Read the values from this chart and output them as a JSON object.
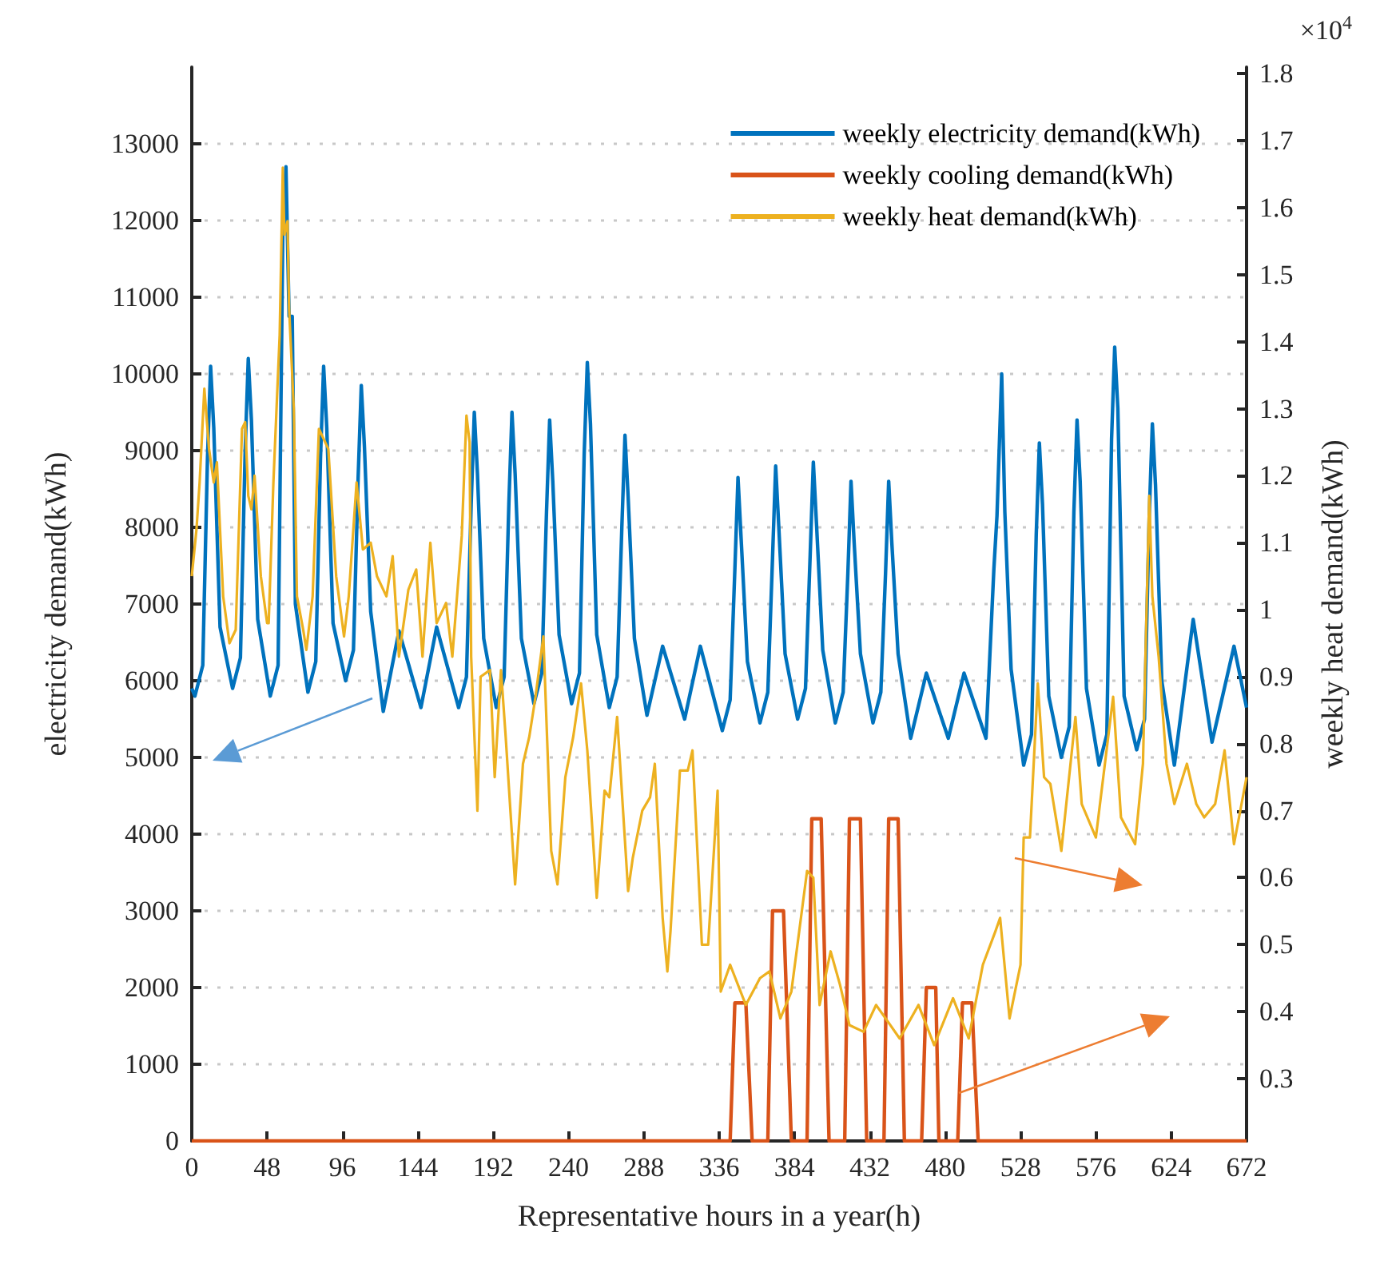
{
  "chart_data": {
    "type": "line",
    "xlabel": "Representative hours in a year(h)",
    "ylabel": "electricity demand(kWh)",
    "y2label": "weekly heat demand(kWh)",
    "annotations": [
      "×10$^{4}$"
    ],
    "xlim": [
      0,
      672
    ],
    "xticks": [
      0,
      48,
      96,
      144,
      192,
      240,
      288,
      336,
      384,
      432,
      480,
      528,
      576,
      624,
      672
    ],
    "ylim": [
      0,
      14000
    ],
    "yticks": [
      0,
      1000,
      2000,
      3000,
      4000,
      5000,
      6000,
      7000,
      8000,
      9000,
      10000,
      11000,
      12000,
      13000
    ],
    "y2lim": [
      0.207,
      1.81
    ],
    "y2ticks": [
      0.3,
      0.4,
      0.5,
      0.6,
      0.7,
      0.8,
      0.9,
      1,
      1.1,
      1.2,
      1.3,
      1.4,
      1.5,
      1.6,
      1.7,
      1.8
    ],
    "grid": "y",
    "legend": "top right",
    "series": [
      {
        "name": "weekly electricity demand(kWh)",
        "color": "#0072bd",
        "x": [
          0,
          2,
          7,
          10,
          12,
          14,
          18,
          26,
          31,
          34,
          36,
          38,
          42,
          50,
          55,
          58,
          60,
          62,
          64,
          66,
          74,
          79,
          82,
          84,
          86,
          90,
          98,
          103,
          106,
          108,
          110,
          114,
          122,
          132,
          146,
          156,
          170,
          175,
          178,
          180,
          182,
          186,
          194,
          199,
          202,
          204,
          206,
          210,
          218,
          223,
          226,
          228,
          230,
          234,
          242,
          247,
          250,
          252,
          254,
          258,
          266,
          271,
          274,
          276,
          278,
          282,
          290,
          300,
          314,
          324,
          338,
          343,
          346,
          348,
          350,
          354,
          362,
          367,
          370,
          372,
          374,
          378,
          386,
          391,
          394,
          396,
          398,
          402,
          410,
          415,
          418,
          420,
          422,
          426,
          434,
          439,
          442,
          444,
          446,
          450,
          458,
          468,
          482,
          492,
          506,
          511,
          513,
          516,
          518,
          522,
          530,
          535,
          538,
          540,
          542,
          546,
          554,
          559,
          562,
          564,
          566,
          570,
          578,
          583,
          586,
          588,
          590,
          594,
          602,
          607,
          610,
          612,
          614,
          618,
          626,
          638,
          650,
          664,
          672
        ],
        "values": [
          5900,
          5800,
          6200,
          8900,
          10100,
          9300,
          6700,
          5900,
          6300,
          9000,
          10200,
          9400,
          6800,
          5800,
          6200,
          11850,
          12700,
          10750,
          10750,
          7000,
          5850,
          6250,
          8900,
          10100,
          9300,
          6750,
          6000,
          6400,
          8650,
          9850,
          9050,
          6900,
          5600,
          6650,
          5650,
          6700,
          5650,
          6050,
          8300,
          9500,
          8700,
          6550,
          5650,
          6050,
          8300,
          9500,
          8700,
          6550,
          5700,
          6100,
          8200,
          9400,
          8600,
          6600,
          5700,
          6100,
          8950,
          10150,
          9350,
          6600,
          5650,
          6050,
          8000,
          9200,
          8400,
          6550,
          5550,
          6450,
          5500,
          6450,
          5350,
          5750,
          7450,
          8650,
          7850,
          6250,
          5450,
          5850,
          7600,
          8800,
          8000,
          6350,
          5500,
          5900,
          7650,
          8850,
          8050,
          6400,
          5450,
          5850,
          7400,
          8600,
          7800,
          6350,
          5450,
          5850,
          7400,
          8600,
          7800,
          6350,
          5250,
          6100,
          5250,
          6100,
          5250,
          7450,
          8150,
          10000,
          8200,
          6150,
          4900,
          5300,
          7900,
          9100,
          8300,
          5800,
          5000,
          5400,
          8200,
          9400,
          8600,
          5900,
          4900,
          5300,
          9150,
          10350,
          9550,
          5800,
          5100,
          5500,
          8150,
          9350,
          8550,
          6000,
          4900,
          6800,
          5200,
          6450,
          5650
        ]
      },
      {
        "name": "weekly cooling demand(kWh)",
        "color": "#d95319",
        "x": [
          0,
          343,
          346,
          353,
          357,
          367,
          370,
          377,
          382,
          392,
          395,
          401,
          406,
          416,
          419,
          426,
          430,
          441,
          444,
          450,
          454,
          465,
          468,
          474,
          476,
          488,
          491,
          497,
          501,
          672
        ],
        "values": [
          0,
          0,
          1800,
          1800,
          0,
          0,
          3000,
          3000,
          0,
          0,
          4200,
          4200,
          0,
          0,
          4200,
          4200,
          0,
          0,
          4200,
          4200,
          0,
          0,
          2000,
          2000,
          0,
          0,
          1800,
          1800,
          0,
          0
        ]
      },
      {
        "name": "weekly heat demand(kWh)",
        "color": "#edb120",
        "axis": "y2",
        "x": [
          0,
          3,
          5,
          8,
          11,
          14,
          16,
          20,
          24,
          28,
          32,
          34,
          36,
          38,
          40,
          44,
          48,
          49,
          52,
          56,
          58,
          59,
          61,
          62,
          65,
          67,
          71,
          73,
          77,
          81,
          83,
          87,
          92,
          97,
          100,
          105,
          109,
          114,
          118,
          124,
          128,
          132,
          138,
          143,
          147,
          152,
          156,
          162,
          166,
          172,
          175,
          177,
          178,
          182,
          184,
          190,
          193,
          197,
          200,
          206,
          211,
          215,
          219,
          224,
          229,
          233,
          238,
          243,
          248,
          252,
          258,
          263,
          266,
          271,
          278,
          281,
          287,
          292,
          295,
          300,
          303,
          305,
          311,
          316,
          319,
          325,
          329,
          335,
          337,
          343,
          353,
          362,
          368,
          375,
          382,
          387,
          392,
          396,
          400,
          407,
          413,
          419,
          428,
          436,
          445,
          451,
          463,
          473,
          485,
          495,
          504,
          512,
          515,
          521,
          528,
          530,
          534,
          539,
          543,
          547,
          554,
          563,
          567,
          576,
          587,
          592,
          601,
          606,
          610,
          612,
          616,
          621,
          626,
          634,
          640,
          645,
          652,
          658,
          664,
          672
        ],
        "values": [
          1.05,
          1.12,
          1.19,
          1.33,
          1.24,
          1.19,
          1.22,
          1.02,
          0.95,
          0.97,
          1.27,
          1.28,
          1.17,
          1.15,
          1.2,
          1.05,
          0.98,
          0.98,
          1.19,
          1.41,
          1.66,
          1.56,
          1.58,
          1.45,
          1.3,
          1.02,
          0.97,
          0.94,
          1.02,
          1.27,
          1.26,
          1.24,
          1.05,
          0.96,
          1.02,
          1.19,
          1.09,
          1.1,
          1.05,
          1.02,
          1.08,
          0.93,
          1.03,
          1.06,
          0.93,
          1.1,
          0.98,
          1.01,
          0.93,
          1.11,
          1.29,
          1.25,
          0.93,
          0.7,
          0.9,
          0.91,
          0.75,
          0.91,
          0.81,
          0.59,
          0.77,
          0.81,
          0.87,
          0.96,
          0.64,
          0.59,
          0.75,
          0.81,
          0.89,
          0.79,
          0.57,
          0.73,
          0.72,
          0.84,
          0.58,
          0.63,
          0.7,
          0.72,
          0.77,
          0.54,
          0.46,
          0.52,
          0.76,
          0.76,
          0.79,
          0.5,
          0.5,
          0.73,
          0.43,
          0.47,
          0.41,
          0.45,
          0.46,
          0.39,
          0.43,
          0.52,
          0.61,
          0.6,
          0.41,
          0.49,
          0.44,
          0.38,
          0.37,
          0.41,
          0.38,
          0.36,
          0.41,
          0.35,
          0.42,
          0.36,
          0.47,
          0.52,
          0.54,
          0.39,
          0.47,
          0.66,
          0.66,
          0.89,
          0.75,
          0.74,
          0.64,
          0.84,
          0.71,
          0.66,
          0.87,
          0.69,
          0.65,
          0.77,
          1.17,
          1.02,
          0.93,
          0.77,
          0.71,
          0.77,
          0.71,
          0.69,
          0.71,
          0.79,
          0.65,
          0.75
        ]
      }
    ]
  }
}
